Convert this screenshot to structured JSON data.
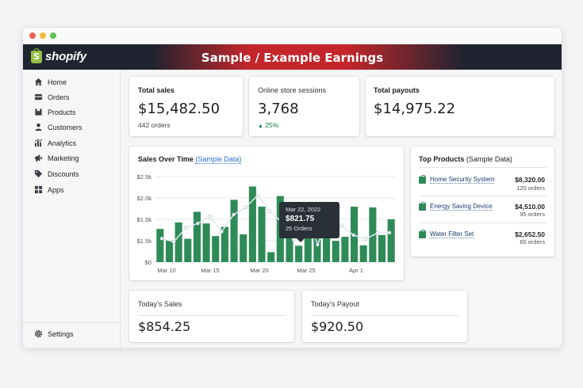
{
  "app": {
    "logo_text": "shopify",
    "banner_title": "Sample / Example Earnings"
  },
  "sidebar": {
    "items": [
      {
        "label": "Home",
        "icon": "home-icon"
      },
      {
        "label": "Orders",
        "icon": "orders-icon"
      },
      {
        "label": "Products",
        "icon": "products-icon"
      },
      {
        "label": "Customers",
        "icon": "customers-icon"
      },
      {
        "label": "Analytics",
        "icon": "analytics-icon"
      },
      {
        "label": "Marketing",
        "icon": "marketing-icon"
      },
      {
        "label": "Discounts",
        "icon": "discounts-icon"
      },
      {
        "label": "Apps",
        "icon": "apps-icon"
      }
    ],
    "settings_label": "Settings"
  },
  "stats": {
    "total_sales": {
      "label": "Total sales",
      "value": "$15,482.50",
      "sub": "442 orders"
    },
    "sessions": {
      "label": "Online store sessions",
      "value": "3,768",
      "change": "25%"
    },
    "payouts": {
      "label": "Total payouts",
      "value": "$14,975.22"
    }
  },
  "sales_chart": {
    "title": "Sales Over Time",
    "title_suffix": "(Sample Data)",
    "tooltip": {
      "date": "Mar 22, 2022",
      "value": "$821.75",
      "orders": "25 Orders"
    }
  },
  "top_products": {
    "title": "Top Products",
    "title_suffix": "(Sample Data)",
    "items": [
      {
        "name": "Home Security System",
        "value": "$8,320.00",
        "orders": "120 orders"
      },
      {
        "name": "Energy Saving Device",
        "value": "$4,510.00",
        "orders": "95 orders"
      },
      {
        "name": "Water Filter Set",
        "value": "$2,652.50",
        "orders": "65 orders"
      }
    ]
  },
  "today": {
    "sales": {
      "label": "Today’s Sales",
      "value": "$854.25"
    },
    "payout": {
      "label": "Today’s Payout",
      "value": "$920.50"
    }
  },
  "colors": {
    "bar": "#2e8b57",
    "accent_red": "#c4262b",
    "topbar_dark": "#1f2430"
  },
  "chart_data": {
    "type": "bar",
    "title": "Sales Over Time",
    "ytick_labels": [
      "$0",
      "$1.5k",
      "$1.5k",
      "$2.0k",
      "$2.5k"
    ],
    "xtick_labels": [
      "Mar 10",
      "Mar 15",
      "Mar 20",
      "Mar 25",
      "Apr 1"
    ],
    "ylim": [
      0,
      2500
    ],
    "bars": [
      970,
      630,
      1160,
      680,
      1470,
      1130,
      760,
      1030,
      1820,
      810,
      2210,
      1620,
      290,
      1930,
      1140,
      480,
      1130,
      940,
      1240,
      620,
      740,
      1620,
      490,
      1600,
      790,
      1250
    ],
    "line": [
      690,
      590,
      1000,
      1130,
      1330,
      890,
      1390,
      1600,
      1950,
      1490,
      1170,
      660,
      1660,
      510,
      1370,
      1070,
      790,
      680,
      850,
      860
    ]
  }
}
